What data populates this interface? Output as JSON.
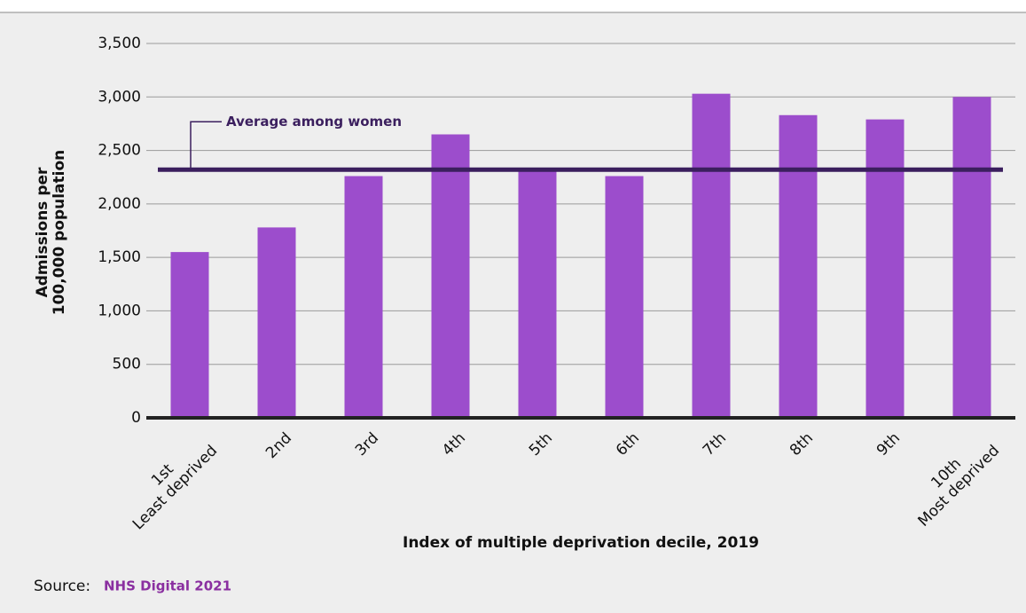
{
  "chart_data": {
    "type": "bar",
    "categories": [
      "1st",
      "2nd",
      "3rd",
      "4th",
      "5th",
      "6th",
      "7th",
      "8th",
      "9th",
      "10th"
    ],
    "category_sublabels": [
      "Least deprived",
      null,
      null,
      null,
      null,
      null,
      null,
      null,
      null,
      "Most deprived"
    ],
    "values": [
      1550,
      1780,
      2260,
      2650,
      2320,
      2260,
      3030,
      2830,
      2790,
      3000
    ],
    "color": "#9c4dcc",
    "ylim": [
      0,
      3500
    ],
    "yticks": [
      0,
      {
        "value": 500,
        "label": "500"
      },
      {
        "value": 1000,
        "label": "1,000"
      },
      {
        "value": 1500,
        "label": "1,500"
      },
      {
        "value": 2000,
        "label": "2,000"
      },
      {
        "value": 2500,
        "label": "2,500"
      },
      {
        "value": 3000,
        "label": "3,000"
      },
      {
        "value": 3500,
        "label": "3,500"
      }
    ],
    "grid": true,
    "ylabel": [
      "Admissions per",
      "100,000 population"
    ],
    "xlabel": "Index of multiple deprivation decile, 2019",
    "average": {
      "label": "Average among women",
      "value": 2320,
      "color": "#3b1f5e"
    },
    "source": {
      "prefix": "Source:",
      "link": "NHS Digital 2021"
    }
  }
}
